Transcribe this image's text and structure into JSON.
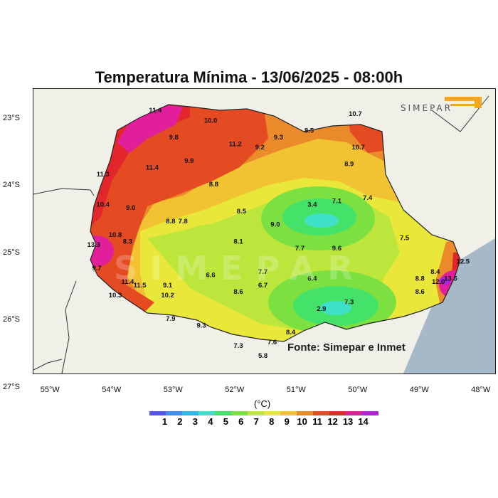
{
  "title": "Temperatura Mínima - 13/06/2025 - 08:00h",
  "logo_text": "SIMEPAR",
  "source": "Fonte: Simepar e Inmet",
  "watermark": "SIMEPAR",
  "unit": "(°C)",
  "y_axis_labels": [
    "23°S",
    "24°S",
    "25°S",
    "26°S",
    "27°S"
  ],
  "x_axis_labels": [
    "55°W",
    "54°W",
    "53°W",
    "52°W",
    "51°W",
    "50°W",
    "49°W",
    "48°W"
  ],
  "colorbar": {
    "ticks": [
      "1",
      "2",
      "3",
      "4",
      "5",
      "6",
      "7",
      "8",
      "9",
      "10",
      "11",
      "12",
      "13",
      "14"
    ],
    "colors": [
      "#5555ee",
      "#3f8ff0",
      "#32b8e8",
      "#3ee0c8",
      "#45e26a",
      "#7be040",
      "#bce63c",
      "#e8e83a",
      "#f1c232",
      "#eb8a2a",
      "#e54b23",
      "#e3262b",
      "#e21f9b",
      "#b123d9"
    ]
  },
  "stations": [
    {
      "label": "11.4",
      "lon": -53.3,
      "lat": -22.9
    },
    {
      "label": "10.0",
      "lon": -52.4,
      "lat": -23.05
    },
    {
      "label": "9.8",
      "lon": -53.0,
      "lat": -23.3
    },
    {
      "label": "11.2",
      "lon": -52.0,
      "lat": -23.4
    },
    {
      "label": "9.2",
      "lon": -51.6,
      "lat": -23.45
    },
    {
      "label": "9.3",
      "lon": -51.3,
      "lat": -23.3
    },
    {
      "label": "8.5",
      "lon": -50.8,
      "lat": -23.2
    },
    {
      "label": "10.7",
      "lon": -50.05,
      "lat": -22.95
    },
    {
      "label": "10.7",
      "lon": -50.0,
      "lat": -23.45
    },
    {
      "label": "8.9",
      "lon": -50.15,
      "lat": -23.7
    },
    {
      "label": "11.3",
      "lon": -54.15,
      "lat": -23.85
    },
    {
      "label": "11.4",
      "lon": -53.35,
      "lat": -23.75
    },
    {
      "label": "9.9",
      "lon": -52.75,
      "lat": -23.65
    },
    {
      "label": "8.8",
      "lon": -52.35,
      "lat": -24.0
    },
    {
      "label": "10.4",
      "lon": -54.15,
      "lat": -24.3
    },
    {
      "label": "9.0",
      "lon": -53.7,
      "lat": -24.35
    },
    {
      "label": "8.5",
      "lon": -51.9,
      "lat": -24.4
    },
    {
      "label": "3.4",
      "lon": -50.75,
      "lat": -24.3
    },
    {
      "label": "7.1",
      "lon": -50.35,
      "lat": -24.25
    },
    {
      "label": "7.4",
      "lon": -49.85,
      "lat": -24.2
    },
    {
      "label": "8.8",
      "lon": -53.05,
      "lat": -24.55
    },
    {
      "label": "7.8",
      "lon": -52.85,
      "lat": -24.55
    },
    {
      "label": "9.0",
      "lon": -51.35,
      "lat": -24.6
    },
    {
      "label": "10.8",
      "lon": -53.95,
      "lat": -24.75
    },
    {
      "label": "8.3",
      "lon": -53.75,
      "lat": -24.85
    },
    {
      "label": "8.1",
      "lon": -51.95,
      "lat": -24.85
    },
    {
      "label": "13.3",
      "lon": -54.3,
      "lat": -24.9
    },
    {
      "label": "7.7",
      "lon": -50.95,
      "lat": -24.95
    },
    {
      "label": "9.6",
      "lon": -50.35,
      "lat": -24.95
    },
    {
      "label": "7.5",
      "lon": -49.25,
      "lat": -24.8
    },
    {
      "label": "9.7",
      "lon": -54.25,
      "lat": -25.25
    },
    {
      "label": "6.6",
      "lon": -52.4,
      "lat": -25.35
    },
    {
      "label": "7.7",
      "lon": -51.55,
      "lat": -25.3
    },
    {
      "label": "6.7",
      "lon": -51.55,
      "lat": -25.5
    },
    {
      "label": "6.4",
      "lon": -50.75,
      "lat": -25.4
    },
    {
      "label": "11.4",
      "lon": -53.75,
      "lat": -25.45
    },
    {
      "label": "11.5",
      "lon": -53.55,
      "lat": -25.5
    },
    {
      "label": "9.1",
      "lon": -53.1,
      "lat": -25.5
    },
    {
      "label": "10.2",
      "lon": -53.1,
      "lat": -25.65
    },
    {
      "label": "10.3",
      "lon": -53.95,
      "lat": -25.65
    },
    {
      "label": "8.6",
      "lon": -51.95,
      "lat": -25.6
    },
    {
      "label": "8.4",
      "lon": -48.75,
      "lat": -25.3
    },
    {
      "label": "8.8",
      "lon": -49.0,
      "lat": -25.4
    },
    {
      "label": "8.6",
      "lon": -49.0,
      "lat": -25.6
    },
    {
      "label": "12.0",
      "lon": -48.7,
      "lat": -25.45
    },
    {
      "label": "13.5",
      "lon": -48.5,
      "lat": -25.4
    },
    {
      "label": "12.5",
      "lon": -48.3,
      "lat": -25.15
    },
    {
      "label": "7.3",
      "lon": -50.15,
      "lat": -25.75
    },
    {
      "label": "2.9",
      "lon": -50.6,
      "lat": -25.85
    },
    {
      "label": "7.9",
      "lon": -53.05,
      "lat": -26.0
    },
    {
      "label": "9.3",
      "lon": -52.55,
      "lat": -26.1
    },
    {
      "label": "8.4",
      "lon": -51.1,
      "lat": -26.2
    },
    {
      "label": "7.6",
      "lon": -51.4,
      "lat": -26.35
    },
    {
      "label": "7.3",
      "lon": -51.95,
      "lat": -26.4
    },
    {
      "label": "5.8",
      "lon": -51.55,
      "lat": -26.55
    }
  ]
}
